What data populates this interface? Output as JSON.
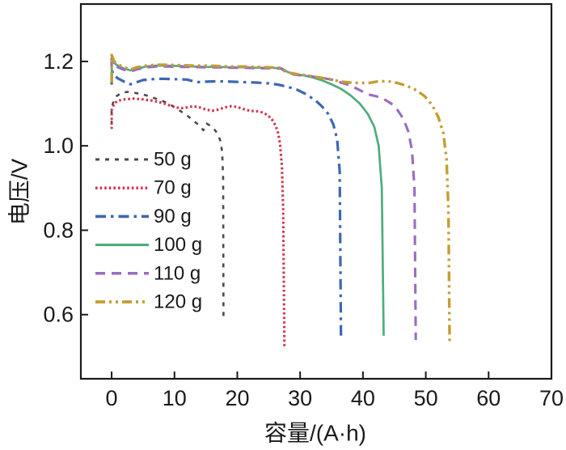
{
  "chart_data": {
    "type": "line",
    "title": "",
    "xlabel": "容量/(A·h)",
    "ylabel": "电压/V",
    "xlim": [
      -4.9,
      70
    ],
    "ylim": [
      0.448,
      1.336
    ],
    "xticks": [
      0,
      10,
      20,
      30,
      40,
      50,
      60,
      70
    ],
    "yticks": [
      0.6,
      0.8,
      1.0,
      1.2
    ],
    "ytick_labels": [
      "0.6",
      "0.8",
      "1.0",
      "1.2"
    ],
    "grid": false,
    "legend_position": "inside-left",
    "axis_color": "#1a1a1a",
    "series": [
      {
        "name": "50 g",
        "color": "#4b4b4b",
        "style": "dashed",
        "dash": "5 7",
        "width": 2.6,
        "points": [
          [
            0,
            1.05
          ],
          [
            0,
            1.09
          ],
          [
            0.3,
            1.105
          ],
          [
            0.8,
            1.118
          ],
          [
            1.5,
            1.125
          ],
          [
            2.5,
            1.128
          ],
          [
            3.5,
            1.126
          ],
          [
            5,
            1.122
          ],
          [
            6,
            1.117
          ],
          [
            7,
            1.112
          ],
          [
            8,
            1.107
          ],
          [
            9,
            1.1
          ],
          [
            10,
            1.092
          ],
          [
            11,
            1.082
          ],
          [
            12,
            1.072
          ],
          [
            13,
            1.06
          ],
          [
            13.8,
            1.05
          ],
          [
            14.6,
            1.037
          ],
          [
            15.1,
            1.053
          ],
          [
            15.7,
            1.048
          ],
          [
            16.3,
            1.04
          ],
          [
            16.9,
            1.028
          ],
          [
            17.3,
            1.012
          ],
          [
            17.6,
            0.985
          ],
          [
            17.75,
            0.92
          ],
          [
            17.8,
            0.585
          ]
        ]
      },
      {
        "name": "70 g",
        "color": "#d13449",
        "style": "dotted",
        "dash": "2.6 3",
        "width": 3.1,
        "points": [
          [
            0,
            1.04
          ],
          [
            0,
            1.085
          ],
          [
            0.4,
            1.1
          ],
          [
            1,
            1.107
          ],
          [
            2,
            1.11
          ],
          [
            3.5,
            1.112
          ],
          [
            5,
            1.11
          ],
          [
            6.5,
            1.107
          ],
          [
            8,
            1.102
          ],
          [
            9,
            1.097
          ],
          [
            10,
            1.092
          ],
          [
            11,
            1.089
          ],
          [
            12,
            1.091
          ],
          [
            13,
            1.094
          ],
          [
            14,
            1.091
          ],
          [
            15,
            1.086
          ],
          [
            16,
            1.083
          ],
          [
            17,
            1.086
          ],
          [
            18,
            1.091
          ],
          [
            19,
            1.094
          ],
          [
            20,
            1.092
          ],
          [
            21,
            1.087
          ],
          [
            22,
            1.083
          ],
          [
            23,
            1.082
          ],
          [
            24,
            1.079
          ],
          [
            24.8,
            1.073
          ],
          [
            25.5,
            1.063
          ],
          [
            26.1,
            1.048
          ],
          [
            26.5,
            1.03
          ],
          [
            26.8,
            1.005
          ],
          [
            27.1,
            0.95
          ],
          [
            27.3,
            0.85
          ],
          [
            27.5,
            0.52
          ]
        ]
      },
      {
        "name": "90 g",
        "color": "#3e67b1",
        "style": "dashdot",
        "dash": "13 6 3.5 6",
        "width": 3.2,
        "points": [
          [
            0,
            1.145
          ],
          [
            0,
            1.18
          ],
          [
            0.3,
            1.168
          ],
          [
            1,
            1.16
          ],
          [
            2,
            1.152
          ],
          [
            3,
            1.146
          ],
          [
            4,
            1.151
          ],
          [
            5,
            1.156
          ],
          [
            6.5,
            1.158
          ],
          [
            8,
            1.159
          ],
          [
            10,
            1.158
          ],
          [
            12,
            1.157
          ],
          [
            13.5,
            1.151
          ],
          [
            15,
            1.152
          ],
          [
            17,
            1.153
          ],
          [
            19,
            1.152
          ],
          [
            21,
            1.151
          ],
          [
            23,
            1.15
          ],
          [
            25,
            1.148
          ],
          [
            26.5,
            1.145
          ],
          [
            28,
            1.14
          ],
          [
            29.5,
            1.133
          ],
          [
            31,
            1.122
          ],
          [
            32.5,
            1.107
          ],
          [
            33.5,
            1.093
          ],
          [
            34.5,
            1.075
          ],
          [
            35.3,
            1.05
          ],
          [
            35.9,
            1.015
          ],
          [
            36.3,
            0.94
          ],
          [
            36.5,
            0.55
          ]
        ]
      },
      {
        "name": "100 g",
        "color": "#4ead7c",
        "style": "solid",
        "dash": "",
        "width": 2.7,
        "points": [
          [
            0,
            1.16
          ],
          [
            0,
            1.21
          ],
          [
            0.4,
            1.196
          ],
          [
            1,
            1.19
          ],
          [
            2,
            1.183
          ],
          [
            3,
            1.179
          ],
          [
            4,
            1.183
          ],
          [
            5.5,
            1.188
          ],
          [
            7,
            1.19
          ],
          [
            9,
            1.19
          ],
          [
            11,
            1.189
          ],
          [
            13,
            1.188
          ],
          [
            15,
            1.187
          ],
          [
            17,
            1.187
          ],
          [
            19,
            1.186
          ],
          [
            21,
            1.186
          ],
          [
            23,
            1.185
          ],
          [
            25,
            1.185
          ],
          [
            27,
            1.184
          ],
          [
            28,
            1.175
          ],
          [
            29,
            1.17
          ],
          [
            30.5,
            1.167
          ],
          [
            32,
            1.162
          ],
          [
            33.5,
            1.155
          ],
          [
            35,
            1.146
          ],
          [
            36.5,
            1.135
          ],
          [
            38,
            1.12
          ],
          [
            39.5,
            1.1
          ],
          [
            40.8,
            1.075
          ],
          [
            41.8,
            1.045
          ],
          [
            42.5,
            1.0
          ],
          [
            43,
            0.9
          ],
          [
            43.3,
            0.55
          ]
        ]
      },
      {
        "name": "110 g",
        "color": "#9a6cc0",
        "style": "dashed",
        "dash": "12 8",
        "width": 3.1,
        "points": [
          [
            0,
            1.15
          ],
          [
            0,
            1.205
          ],
          [
            0.4,
            1.192
          ],
          [
            1,
            1.186
          ],
          [
            2,
            1.18
          ],
          [
            3,
            1.176
          ],
          [
            4,
            1.181
          ],
          [
            5.5,
            1.186
          ],
          [
            7,
            1.188
          ],
          [
            9,
            1.188
          ],
          [
            11,
            1.187
          ],
          [
            13,
            1.187
          ],
          [
            15,
            1.186
          ],
          [
            17,
            1.186
          ],
          [
            19,
            1.185
          ],
          [
            21,
            1.185
          ],
          [
            23,
            1.184
          ],
          [
            25,
            1.184
          ],
          [
            27,
            1.183
          ],
          [
            28,
            1.172
          ],
          [
            29.5,
            1.168
          ],
          [
            31,
            1.166
          ],
          [
            33,
            1.162
          ],
          [
            35,
            1.157
          ],
          [
            36.5,
            1.15
          ],
          [
            38,
            1.143
          ],
          [
            39.5,
            1.132
          ],
          [
            40.8,
            1.122
          ],
          [
            42,
            1.118
          ],
          [
            43.2,
            1.112
          ],
          [
            44.5,
            1.1
          ],
          [
            45.5,
            1.085
          ],
          [
            46.4,
            1.065
          ],
          [
            47.2,
            1.035
          ],
          [
            47.8,
            0.99
          ],
          [
            48.2,
            0.9
          ],
          [
            48.4,
            0.54
          ]
        ]
      },
      {
        "name": "120 g",
        "color": "#c49d32",
        "style": "dashdotdot",
        "dash": "12 5 3 5 3 5",
        "width": 3.4,
        "points": [
          [
            0,
            1.15
          ],
          [
            0,
            1.215
          ],
          [
            0.4,
            1.2
          ],
          [
            1,
            1.193
          ],
          [
            2,
            1.186
          ],
          [
            3,
            1.181
          ],
          [
            4,
            1.186
          ],
          [
            5.5,
            1.19
          ],
          [
            7,
            1.192
          ],
          [
            9,
            1.192
          ],
          [
            11,
            1.191
          ],
          [
            13,
            1.19
          ],
          [
            15,
            1.19
          ],
          [
            17,
            1.189
          ],
          [
            19,
            1.188
          ],
          [
            21,
            1.188
          ],
          [
            23,
            1.187
          ],
          [
            25,
            1.186
          ],
          [
            27,
            1.185
          ],
          [
            28,
            1.174
          ],
          [
            29.5,
            1.17
          ],
          [
            31,
            1.167
          ],
          [
            33,
            1.162
          ],
          [
            35,
            1.157
          ],
          [
            36.5,
            1.152
          ],
          [
            38,
            1.15
          ],
          [
            39.5,
            1.149
          ],
          [
            41,
            1.149
          ],
          [
            42.5,
            1.153
          ],
          [
            44,
            1.153
          ],
          [
            45.5,
            1.149
          ],
          [
            47,
            1.142
          ],
          [
            48.5,
            1.132
          ],
          [
            49.8,
            1.118
          ],
          [
            51,
            1.097
          ],
          [
            52,
            1.068
          ],
          [
            52.8,
            1.03
          ],
          [
            53.3,
            0.97
          ],
          [
            53.6,
            0.85
          ],
          [
            53.8,
            0.53
          ]
        ]
      }
    ]
  }
}
